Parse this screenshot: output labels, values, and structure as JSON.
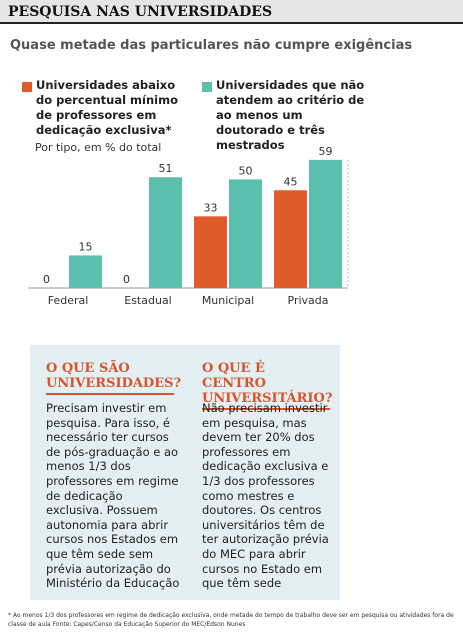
{
  "chart_data": {
    "type": "bar",
    "title": "PESQUISA NAS UNIVERSIDADES",
    "subtitle": "Quase metade das particulares não cumpre exigências",
    "y_label": "Por tipo, em % do total",
    "categories": [
      "Federal",
      "Estadual",
      "Municipal",
      "Privada"
    ],
    "series": [
      {
        "name": "Universidades abaixo do percentual mínimo de professores em dedicação exclusiva*",
        "color": "#e05a2b",
        "values": [
          0,
          0,
          33,
          45
        ]
      },
      {
        "name": "Universidades que não atendem ao critério de ao menos um doutorado e três mestrados",
        "color": "#5bbfae",
        "values": [
          15,
          51,
          50,
          59
        ]
      }
    ],
    "ylim": [
      0,
      64
    ]
  },
  "info_boxes": [
    {
      "title": "O QUE SÃO UNIVERSIDADES?",
      "text": "Precisam investir em pesquisa. Para isso, é necessário ter cursos de pós-graduação e ao menos 1/3 dos professores em regime de dedicação exclusiva. Possuem autonomia para abrir cursos nos Estados em que têm sede sem prévia autorização do Ministério da Educação"
    },
    {
      "title": "O QUE É CENTRO UNIVERSITÁRIO?",
      "text": "Não precisam investir em pesquisa, mas devem ter 20% dos professores em dedicação exclusiva e 1/3 dos professores como mestres e doutores. Os centros universitários têm de ter autorização prévia do MEC para abrir cursos no Estado em que têm sede"
    }
  ],
  "footnote": "* Ao menos 1/3 dos professores em regime de dedicação exclusiva, onde metade do tempo de trabalho deve ser em pesquisa ou atividades fora de classe de aula Fonte: Capes/Censo da Educação Superior do MEC/Edson Nunes"
}
